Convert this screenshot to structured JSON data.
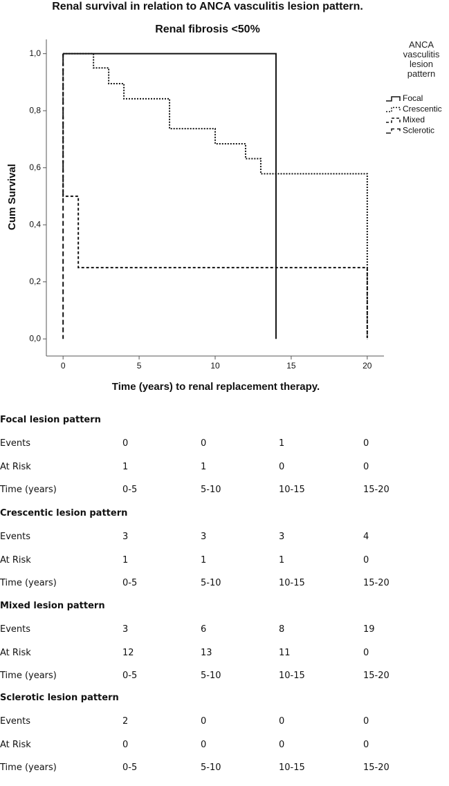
{
  "chart_data": {
    "type": "line",
    "step": true,
    "title": "Renal survival in relation to ANCA vasculitis lesion pattern.",
    "subtitle": "Renal fibrosis <50%",
    "x_label": "Time (years) to renal replacement therapy.",
    "y_label": "Cum Survival",
    "legend_title": "ANCA vasculitis lesion pattern",
    "legend_position": "right",
    "xlim": [
      -1.1,
      21.1
    ],
    "xticks": [
      0,
      5,
      10,
      15,
      20
    ],
    "ylim": [
      -0.06,
      1.05
    ],
    "yticks": [
      {
        "value": 0,
        "label": "0,0"
      },
      {
        "value": 0.2,
        "label": "0,2"
      },
      {
        "value": 0.4,
        "label": "0,4"
      },
      {
        "value": 0.6,
        "label": "0,6"
      },
      {
        "value": 0.8,
        "label": "0,8"
      },
      {
        "value": 1,
        "label": "1,0"
      }
    ],
    "series": [
      {
        "name": "Focal",
        "color": "#111111",
        "line_style": "solid",
        "x": [
          0,
          14,
          14
        ],
        "values": [
          1,
          1,
          0
        ]
      },
      {
        "name": "Crescentic",
        "color": "#111111",
        "line_style": "dotted",
        "x": [
          0,
          2,
          2,
          3,
          3,
          4,
          4,
          7,
          7,
          10,
          10,
          12,
          12,
          13,
          13,
          20,
          20
        ],
        "values": [
          1,
          1,
          0.95,
          0.95,
          0.895,
          0.895,
          0.842,
          0.842,
          0.737,
          0.737,
          0.684,
          0.684,
          0.632,
          0.632,
          0.579,
          0.579,
          0
        ]
      },
      {
        "name": "Mixed",
        "color": "#111111",
        "line_style": "dashed",
        "x": [
          0,
          0,
          1,
          1,
          20,
          20
        ],
        "values": [
          1,
          0.5,
          0.5,
          0.25,
          0.25,
          0
        ]
      },
      {
        "name": "Sclerotic",
        "color": "#111111",
        "line_style": "long-dashed",
        "x": [
          0,
          0
        ],
        "values": [
          1,
          0
        ]
      }
    ]
  },
  "tables": [
    {
      "title": "Focal lesion pattern",
      "rows": [
        {
          "label": "Events",
          "cells": [
            0,
            0,
            1,
            0
          ]
        },
        {
          "label": "At Risk",
          "cells": [
            1,
            1,
            0,
            0
          ]
        },
        {
          "label": "Time (years)",
          "cells": [
            "0-5",
            "5-10",
            "10-15",
            "15-20"
          ]
        }
      ]
    },
    {
      "title": "Crescentic lesion pattern",
      "rows": [
        {
          "label": "Events",
          "cells": [
            3,
            3,
            3,
            4
          ]
        },
        {
          "label": "At Risk",
          "cells": [
            1,
            1,
            1,
            0
          ]
        },
        {
          "label": "Time (years)",
          "cells": [
            "0-5",
            "5-10",
            "10-15",
            "15-20"
          ]
        }
      ]
    },
    {
      "title": "Mixed lesion pattern",
      "rows": [
        {
          "label": "Events",
          "cells": [
            3,
            6,
            8,
            19
          ]
        },
        {
          "label": "At Risk",
          "cells": [
            12,
            13,
            11,
            0
          ]
        },
        {
          "label": "Time (years)",
          "cells": [
            "0-5",
            "5-10",
            "10-15",
            "15-20"
          ]
        }
      ]
    },
    {
      "title": "Sclerotic lesion pattern",
      "rows": [
        {
          "label": "Events",
          "cells": [
            2,
            0,
            0,
            0
          ]
        },
        {
          "label": "At Risk",
          "cells": [
            0,
            0,
            0,
            0
          ]
        },
        {
          "label": "Time (years)",
          "cells": [
            "0-5",
            "5-10",
            "10-15",
            "15-20"
          ]
        }
      ]
    }
  ]
}
